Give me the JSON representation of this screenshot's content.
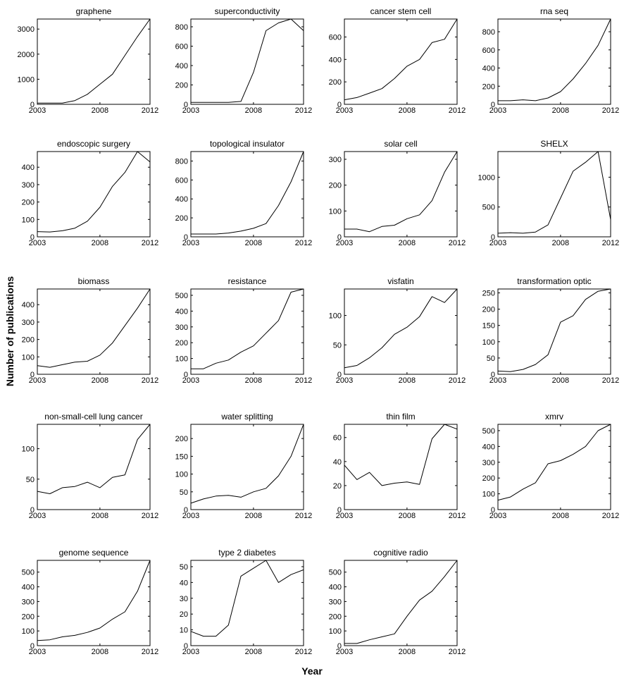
{
  "figure": {
    "ylabel": "Number of publications",
    "xlabel": "Year"
  },
  "chart_data": [
    {
      "type": "line",
      "title": "graphene",
      "x": [
        2003,
        2004,
        2005,
        2006,
        2007,
        2008,
        2009,
        2010,
        2011,
        2012
      ],
      "values": [
        50,
        50,
        50,
        150,
        400,
        800,
        1200,
        1950,
        2700,
        3400
      ],
      "xlim": [
        2003,
        2012
      ],
      "ylim": [
        0,
        3400
      ],
      "xticks": [
        2003,
        2008,
        2012
      ],
      "yticks": [
        0,
        1000,
        2000,
        3000
      ]
    },
    {
      "type": "line",
      "title": "superconductivity",
      "x": [
        2003,
        2004,
        2005,
        2006,
        2007,
        2008,
        2009,
        2010,
        2011,
        2012
      ],
      "values": [
        20,
        20,
        20,
        20,
        30,
        330,
        760,
        840,
        880,
        760
      ],
      "xlim": [
        2003,
        2012
      ],
      "ylim": [
        0,
        880
      ],
      "xticks": [
        2003,
        2008,
        2012
      ],
      "yticks": [
        0,
        200,
        400,
        600,
        800
      ]
    },
    {
      "type": "line",
      "title": "cancer stem cell",
      "x": [
        2003,
        2004,
        2005,
        2006,
        2007,
        2008,
        2009,
        2010,
        2011,
        2012
      ],
      "values": [
        40,
        60,
        100,
        140,
        230,
        340,
        400,
        550,
        580,
        760
      ],
      "xlim": [
        2003,
        2012
      ],
      "ylim": [
        0,
        760
      ],
      "xticks": [
        2003,
        2008,
        2012
      ],
      "yticks": [
        0,
        200,
        400,
        600
      ]
    },
    {
      "type": "line",
      "title": "rna seq",
      "x": [
        2003,
        2004,
        2005,
        2006,
        2007,
        2008,
        2009,
        2010,
        2011,
        2012
      ],
      "values": [
        40,
        40,
        50,
        40,
        70,
        140,
        280,
        450,
        650,
        940
      ],
      "xlim": [
        2003,
        2012
      ],
      "ylim": [
        0,
        940
      ],
      "xticks": [
        2003,
        2008,
        2012
      ],
      "yticks": [
        0,
        200,
        400,
        600,
        800
      ]
    },
    {
      "type": "line",
      "title": "endoscopic surgery",
      "x": [
        2003,
        2004,
        2005,
        2006,
        2007,
        2008,
        2009,
        2010,
        2011,
        2012
      ],
      "values": [
        30,
        28,
        35,
        50,
        90,
        170,
        290,
        370,
        490,
        430
      ],
      "xlim": [
        2003,
        2012
      ],
      "ylim": [
        0,
        490
      ],
      "xticks": [
        2003,
        2008,
        2012
      ],
      "yticks": [
        0,
        100,
        200,
        300,
        400
      ]
    },
    {
      "type": "line",
      "title": "topological insulator",
      "x": [
        2003,
        2004,
        2005,
        2006,
        2007,
        2008,
        2009,
        2010,
        2011,
        2012
      ],
      "values": [
        30,
        30,
        30,
        40,
        60,
        90,
        140,
        330,
        580,
        900
      ],
      "xlim": [
        2003,
        2012
      ],
      "ylim": [
        0,
        900
      ],
      "xticks": [
        2003,
        2008,
        2012
      ],
      "yticks": [
        0,
        200,
        400,
        600,
        800
      ]
    },
    {
      "type": "line",
      "title": "solar cell",
      "x": [
        2003,
        2004,
        2005,
        2006,
        2007,
        2008,
        2009,
        2010,
        2011,
        2012
      ],
      "values": [
        30,
        30,
        20,
        40,
        45,
        70,
        85,
        140,
        250,
        330
      ],
      "xlim": [
        2003,
        2012
      ],
      "ylim": [
        0,
        330
      ],
      "xticks": [
        2003,
        2008,
        2012
      ],
      "yticks": [
        0,
        100,
        200,
        300
      ]
    },
    {
      "type": "line",
      "title": "SHELX",
      "x": [
        2003,
        2004,
        2005,
        2006,
        2007,
        2008,
        2009,
        2010,
        2011,
        2012
      ],
      "values": [
        60,
        70,
        60,
        80,
        200,
        650,
        1100,
        1250,
        1430,
        290
      ],
      "xlim": [
        2003,
        2012
      ],
      "ylim": [
        0,
        1430
      ],
      "xticks": [
        2003,
        2008,
        2012
      ],
      "yticks": [
        0,
        500,
        1000
      ]
    },
    {
      "type": "line",
      "title": "biomass",
      "x": [
        2003,
        2004,
        2005,
        2006,
        2007,
        2008,
        2009,
        2010,
        2011,
        2012
      ],
      "values": [
        50,
        40,
        55,
        70,
        75,
        110,
        180,
        280,
        380,
        490
      ],
      "xlim": [
        2003,
        2012
      ],
      "ylim": [
        0,
        490
      ],
      "xticks": [
        2003,
        2008,
        2012
      ],
      "yticks": [
        0,
        100,
        200,
        300,
        400
      ]
    },
    {
      "type": "line",
      "title": "resistance",
      "x": [
        2003,
        2004,
        2005,
        2006,
        2007,
        2008,
        2009,
        2010,
        2011,
        2012
      ],
      "values": [
        35,
        35,
        70,
        90,
        140,
        180,
        260,
        340,
        520,
        540
      ],
      "xlim": [
        2003,
        2012
      ],
      "ylim": [
        0,
        540
      ],
      "xticks": [
        2003,
        2008,
        2012
      ],
      "yticks": [
        0,
        100,
        200,
        300,
        400,
        500
      ]
    },
    {
      "type": "line",
      "title": "visfatin",
      "x": [
        2003,
        2004,
        2005,
        2006,
        2007,
        2008,
        2009,
        2010,
        2011,
        2012
      ],
      "values": [
        11,
        15,
        28,
        45,
        68,
        80,
        98,
        132,
        122,
        145
      ],
      "xlim": [
        2003,
        2012
      ],
      "ylim": [
        0,
        145
      ],
      "xticks": [
        2003,
        2008,
        2012
      ],
      "yticks": [
        0,
        50,
        100
      ]
    },
    {
      "type": "line",
      "title": "transformation optic",
      "x": [
        2003,
        2004,
        2005,
        2006,
        2007,
        2008,
        2009,
        2010,
        2011,
        2012
      ],
      "values": [
        10,
        8,
        15,
        30,
        60,
        160,
        180,
        230,
        255,
        262
      ],
      "xlim": [
        2003,
        2012
      ],
      "ylim": [
        0,
        262
      ],
      "xticks": [
        2003,
        2008,
        2012
      ],
      "yticks": [
        0,
        50,
        100,
        150,
        200,
        250
      ]
    },
    {
      "type": "line",
      "title": "non-small-cell lung cancer",
      "x": [
        2003,
        2004,
        2005,
        2006,
        2007,
        2008,
        2009,
        2010,
        2011,
        2012
      ],
      "values": [
        30,
        26,
        36,
        38,
        45,
        36,
        53,
        57,
        115,
        140
      ],
      "xlim": [
        2003,
        2012
      ],
      "ylim": [
        0,
        140
      ],
      "xticks": [
        2003,
        2008,
        2012
      ],
      "yticks": [
        0,
        50,
        100
      ]
    },
    {
      "type": "line",
      "title": "water splitting",
      "x": [
        2003,
        2004,
        2005,
        2006,
        2007,
        2008,
        2009,
        2010,
        2011,
        2012
      ],
      "values": [
        18,
        30,
        38,
        40,
        35,
        50,
        60,
        95,
        150,
        240
      ],
      "xlim": [
        2003,
        2012
      ],
      "ylim": [
        0,
        240
      ],
      "xticks": [
        2003,
        2008,
        2012
      ],
      "yticks": [
        0,
        50,
        100,
        150,
        200
      ]
    },
    {
      "type": "line",
      "title": "thin film",
      "x": [
        2003,
        2004,
        2005,
        2006,
        2007,
        2008,
        2009,
        2010,
        2011,
        2012
      ],
      "values": [
        37,
        25,
        31,
        20,
        22,
        23,
        21,
        59,
        71,
        67
      ],
      "xlim": [
        2003,
        2012
      ],
      "ylim": [
        0,
        71
      ],
      "xticks": [
        2003,
        2008,
        2012
      ],
      "yticks": [
        0,
        20,
        40,
        60
      ]
    },
    {
      "type": "line",
      "title": "xmrv",
      "x": [
        2003,
        2004,
        2005,
        2006,
        2007,
        2008,
        2009,
        2010,
        2011,
        2012
      ],
      "values": [
        60,
        80,
        130,
        170,
        290,
        310,
        350,
        400,
        500,
        540
      ],
      "xlim": [
        2003,
        2012
      ],
      "ylim": [
        0,
        540
      ],
      "xticks": [
        2003,
        2008,
        2012
      ],
      "yticks": [
        0,
        100,
        200,
        300,
        400,
        500
      ]
    },
    {
      "type": "line",
      "title": "genome sequence",
      "x": [
        2003,
        2004,
        2005,
        2006,
        2007,
        2008,
        2009,
        2010,
        2011,
        2012
      ],
      "values": [
        35,
        40,
        60,
        70,
        90,
        120,
        180,
        230,
        370,
        580
      ],
      "xlim": [
        2003,
        2012
      ],
      "ylim": [
        0,
        580
      ],
      "xticks": [
        2003,
        2008,
        2012
      ],
      "yticks": [
        0,
        100,
        200,
        300,
        400,
        500
      ]
    },
    {
      "type": "line",
      "title": "type 2 diabetes",
      "x": [
        2003,
        2004,
        2005,
        2006,
        2007,
        2008,
        2009,
        2010,
        2011,
        2012
      ],
      "values": [
        9,
        6,
        6,
        13,
        44,
        49,
        54,
        40,
        45,
        48
      ],
      "xlim": [
        2003,
        2012
      ],
      "ylim": [
        0,
        54
      ],
      "xticks": [
        2003,
        2008,
        2012
      ],
      "yticks": [
        0,
        10,
        20,
        30,
        40,
        50
      ]
    },
    {
      "type": "line",
      "title": "cognitive radio",
      "x": [
        2003,
        2004,
        2005,
        2006,
        2007,
        2008,
        2009,
        2010,
        2011,
        2012
      ],
      "values": [
        15,
        15,
        40,
        60,
        80,
        200,
        310,
        370,
        470,
        580
      ],
      "xlim": [
        2003,
        2012
      ],
      "ylim": [
        0,
        580
      ],
      "xticks": [
        2003,
        2008,
        2012
      ],
      "yticks": [
        0,
        100,
        200,
        300,
        400,
        500
      ]
    }
  ]
}
